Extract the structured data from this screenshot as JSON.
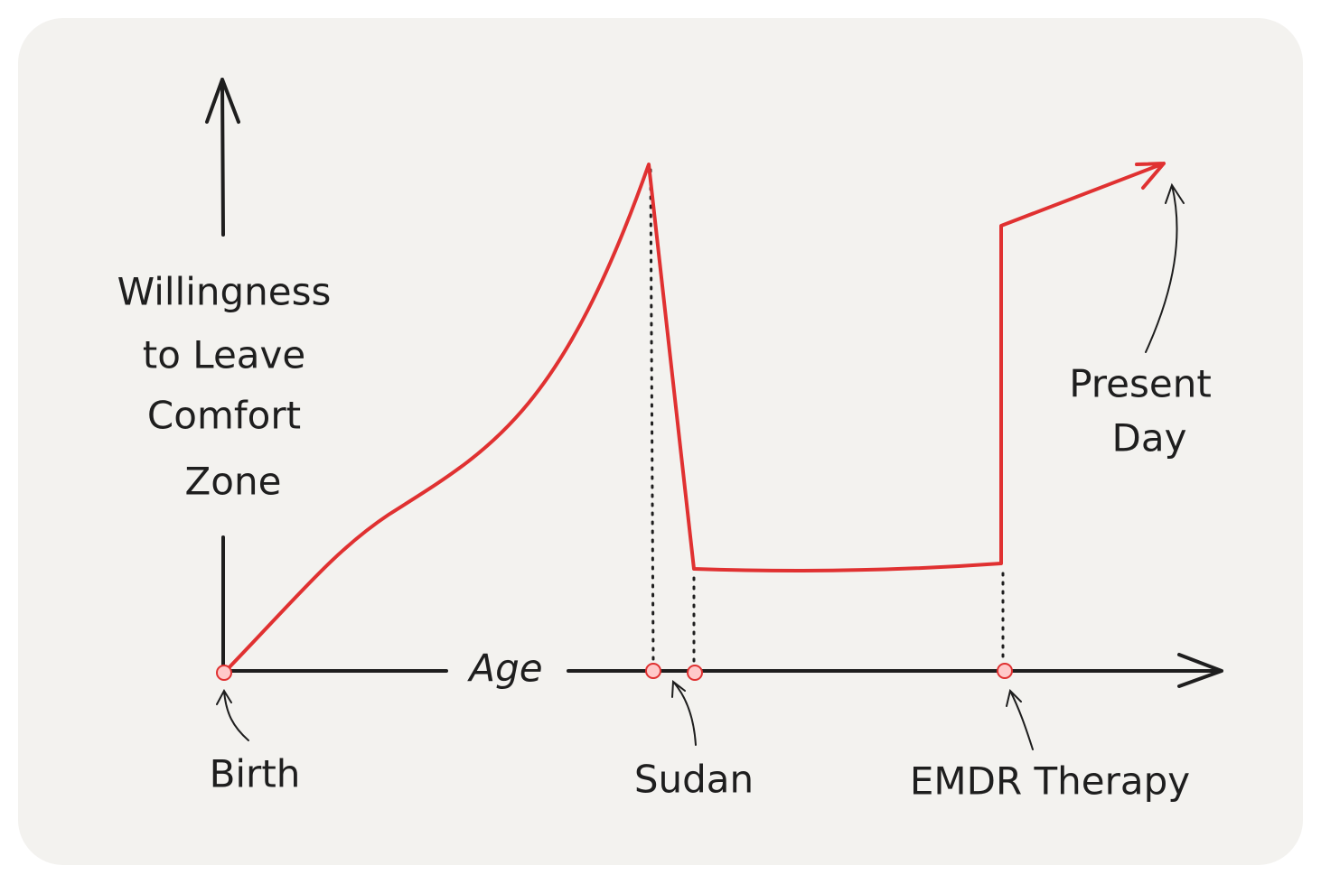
{
  "y_axis_label": [
    "Willingness",
    "to Leave",
    "Comfort",
    "Zone"
  ],
  "x_axis_label": "Age",
  "annotations": {
    "birth": "Birth",
    "sudan": "Sudan",
    "emdr": "EMDR Therapy",
    "present_day": [
      "Present",
      "Day"
    ]
  }
}
